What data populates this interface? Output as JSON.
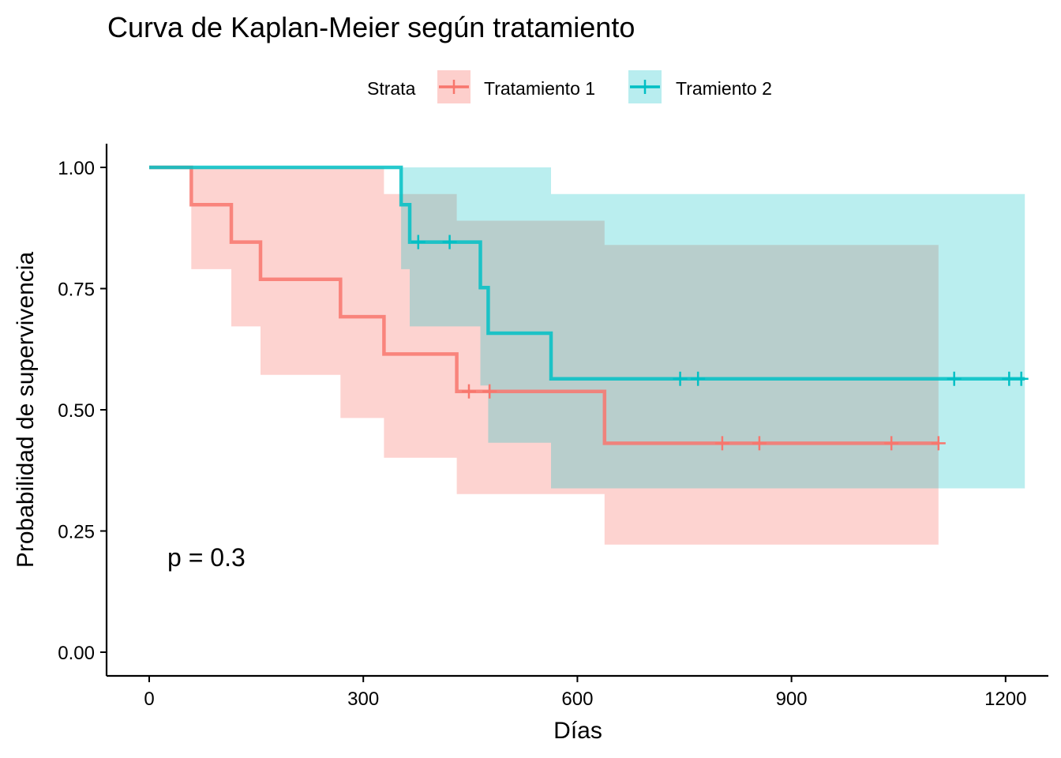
{
  "chart_data": {
    "type": "line",
    "title": "Curva de Kaplan-Meier según tratamiento",
    "xlabel": "Días",
    "ylabel": "Probabilidad de supervivencia",
    "xlim": [
      0,
      1230
    ],
    "ylim": [
      0,
      1
    ],
    "xticks": [
      0,
      300,
      600,
      900,
      1200
    ],
    "xtick_labels": [
      "0",
      "300",
      "600",
      "900",
      "1200"
    ],
    "yticks": [
      0,
      0.25,
      0.5,
      0.75,
      1
    ],
    "ytick_labels": [
      "0.00",
      "0.25",
      "0.50",
      "0.75",
      "1.00"
    ],
    "grid": false,
    "legend": {
      "title": "Strata",
      "placement": "top",
      "entries": [
        "Tratamiento 1",
        "Tramiento 2"
      ]
    },
    "annotation": "p = 0.3",
    "series": [
      {
        "name": "Tratamiento 1",
        "color": "#F8766D",
        "fill_color": "#F8766D",
        "steps": [
          {
            "x": 0,
            "y": 1.0
          },
          {
            "x": 59,
            "y": 0.923
          },
          {
            "x": 115,
            "y": 0.846
          },
          {
            "x": 156,
            "y": 0.769
          },
          {
            "x": 268,
            "y": 0.692
          },
          {
            "x": 329,
            "y": 0.615
          },
          {
            "x": 431,
            "y": 0.538
          },
          {
            "x": 638,
            "y": 0.431
          }
        ],
        "end_x": 1106,
        "ci": [
          {
            "x": 0,
            "lower": 1.0,
            "upper": 1.0
          },
          {
            "x": 59,
            "lower": 0.79,
            "upper": 1.0
          },
          {
            "x": 115,
            "lower": 0.672,
            "upper": 1.0
          },
          {
            "x": 156,
            "lower": 0.572,
            "upper": 1.0
          },
          {
            "x": 268,
            "lower": 0.483,
            "upper": 1.0
          },
          {
            "x": 329,
            "lower": 0.401,
            "upper": 0.945
          },
          {
            "x": 431,
            "lower": 0.326,
            "upper": 0.89
          },
          {
            "x": 638,
            "lower": 0.222,
            "upper": 0.84
          }
        ],
        "censored": [
          448,
          477,
          803,
          855,
          1040,
          1106
        ]
      },
      {
        "name": "Tramiento 2",
        "color": "#00BFC4",
        "fill_color": "#00BFC4",
        "steps": [
          {
            "x": 0,
            "y": 1.0
          },
          {
            "x": 353,
            "y": 0.923
          },
          {
            "x": 365,
            "y": 0.846
          },
          {
            "x": 464,
            "y": 0.752
          },
          {
            "x": 475,
            "y": 0.658
          },
          {
            "x": 563,
            "y": 0.564
          }
        ],
        "end_x": 1227,
        "ci": [
          {
            "x": 0,
            "lower": 1.0,
            "upper": 1.0
          },
          {
            "x": 353,
            "lower": 0.79,
            "upper": 1.0
          },
          {
            "x": 365,
            "lower": 0.672,
            "upper": 1.0
          },
          {
            "x": 464,
            "lower": 0.55,
            "upper": 1.0
          },
          {
            "x": 475,
            "lower": 0.432,
            "upper": 1.0
          },
          {
            "x": 563,
            "lower": 0.338,
            "upper": 0.945
          }
        ],
        "censored": [
          377,
          421,
          744,
          769,
          1128,
          1205,
          1222
        ]
      }
    ]
  }
}
